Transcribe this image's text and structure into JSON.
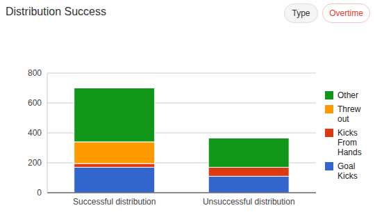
{
  "chart_data": {
    "type": "bar",
    "title": "Distribution Success",
    "categories": [
      "Successful distribution",
      "Unsuccessful distribution"
    ],
    "series": [
      {
        "name": "Goal Kicks",
        "color": "#3366cc",
        "values": [
          170,
          110
        ]
      },
      {
        "name": "Kicks From Hands",
        "color": "#dc3912",
        "values": [
          25,
          60
        ]
      },
      {
        "name": "Threw out",
        "color": "#ff9900",
        "values": [
          145,
          0
        ]
      },
      {
        "name": "Other",
        "color": "#109618",
        "values": [
          360,
          195
        ]
      }
    ],
    "ylim": [
      0,
      800
    ],
    "yticks": [
      0,
      200,
      400,
      600,
      800
    ],
    "grid": true,
    "stacked": true,
    "legend": "right"
  },
  "buttons": [
    "Type",
    "Overtime"
  ]
}
